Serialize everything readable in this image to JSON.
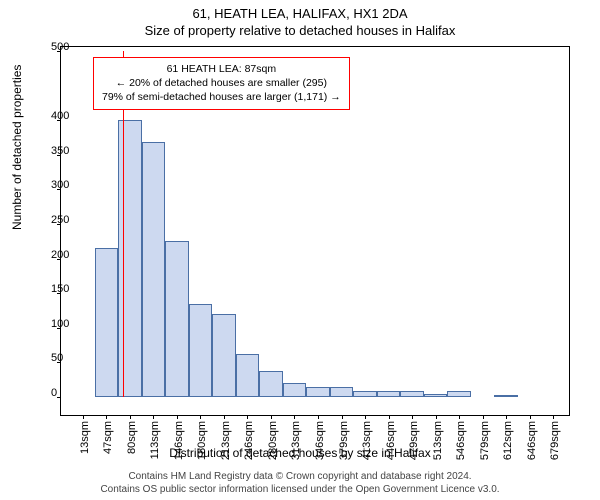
{
  "title_main": "61, HEATH LEA, HALIFAX, HX1 2DA",
  "title_sub": "Size of property relative to detached houses in Halifax",
  "y_axis_label": "Number of detached properties",
  "x_axis_label": "Distribution of detached houses by size in Halifax",
  "footer_line1": "Contains HM Land Registry data © Crown copyright and database right 2024.",
  "footer_line2": "Contains OS public sector information licensed under the Open Government Licence v3.0.",
  "chart": {
    "type": "histogram",
    "background_color": "#ffffff",
    "border_color": "#000000",
    "bar_fill": "#cdd9f0",
    "bar_stroke": "#4a6fa5",
    "marker_color": "#ff0000",
    "callout_border": "#ff0000",
    "callout_bg": "#ffffff",
    "ylim": [
      0,
      500
    ],
    "yticks": [
      0,
      50,
      100,
      150,
      200,
      250,
      300,
      350,
      400,
      500
    ],
    "x_categories": [
      "13sqm",
      "47sqm",
      "80sqm",
      "113sqm",
      "146sqm",
      "180sqm",
      "213sqm",
      "246sqm",
      "280sqm",
      "313sqm",
      "346sqm",
      "379sqm",
      "413sqm",
      "446sqm",
      "479sqm",
      "513sqm",
      "546sqm",
      "579sqm",
      "612sqm",
      "646sqm",
      "679sqm"
    ],
    "values": [
      0,
      215,
      400,
      368,
      225,
      135,
      120,
      62,
      38,
      20,
      15,
      15,
      8,
      8,
      8,
      5,
      8,
      0,
      3,
      0,
      0
    ],
    "marker_x_value": 87,
    "x_range": [
      13,
      712
    ],
    "callout_lines": [
      "61 HEATH LEA: 87sqm",
      "← 20% of detached houses are smaller (295)",
      "79% of semi-detached houses are larger (1,171) →"
    ]
  }
}
